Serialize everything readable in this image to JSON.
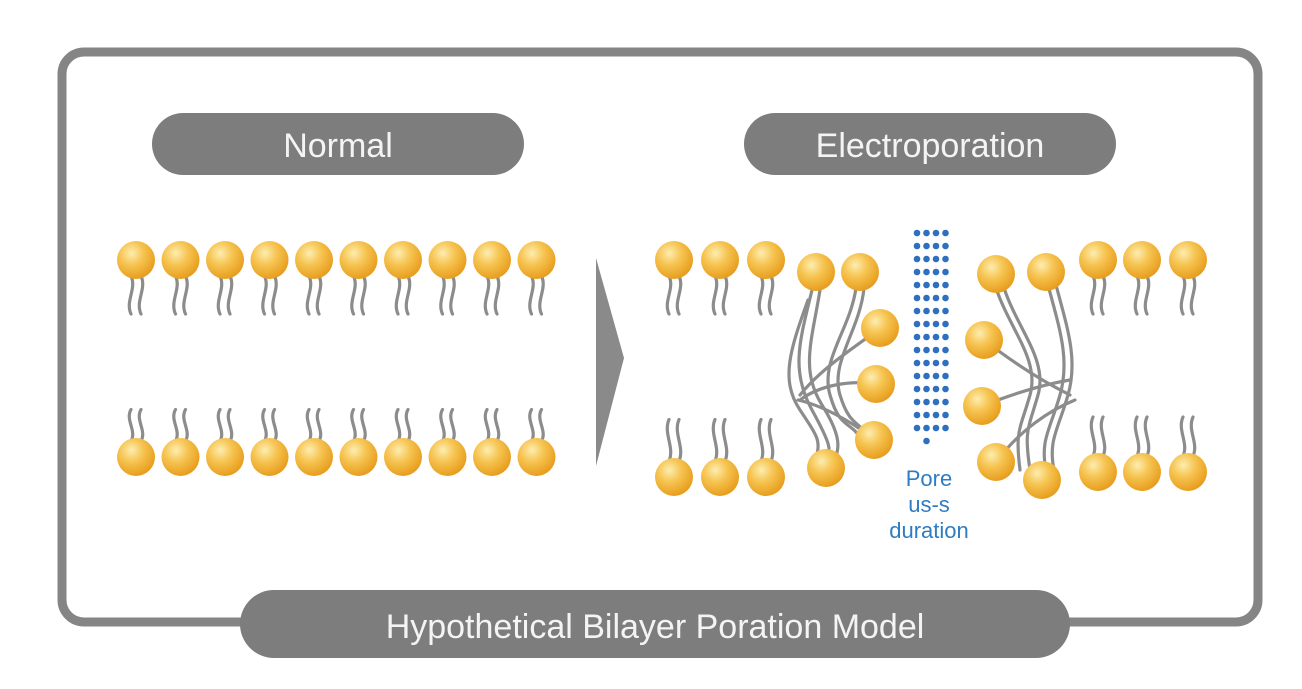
{
  "labels": {
    "normal": "Normal",
    "electroporation": "Electroporation",
    "model": "Hypothetical Bilayer Poration Model"
  },
  "pore": {
    "line1": "Pore",
    "line2": "us-s",
    "line3": "duration"
  },
  "colors": {
    "frame": "#858585",
    "pill": "#7d7d7d",
    "pill_text": "#f4f4f4",
    "lipid_head": "#f0ad2a",
    "lipid_head_highlight": "#fde9a8",
    "tail": "#8c8c8c",
    "pore_dots": "#2f6fc0",
    "pore_text": "#2f7cc2",
    "arrow": "#8a8a8a"
  }
}
